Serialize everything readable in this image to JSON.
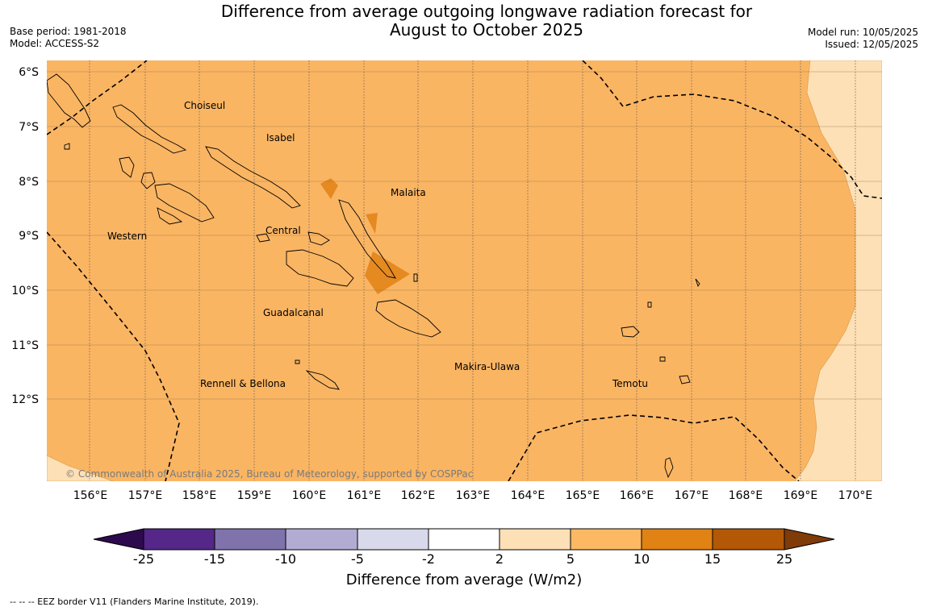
{
  "title_line1": "Difference from average outgoing longwave radiation forecast for",
  "title_line2": "August to October 2025",
  "meta_left": {
    "base_period": "Base period: 1981-2018",
    "model": "Model: ACCESS-S2"
  },
  "meta_right": {
    "model_run": "Model run: 10/05/2025",
    "issued": "Issued: 12/05/2025"
  },
  "map": {
    "lat_labels": [
      "6°S",
      "7°S",
      "8°S",
      "9°S",
      "10°S",
      "11°S",
      "12°S"
    ],
    "lon_labels": [
      "156°E",
      "157°E",
      "158°E",
      "159°E",
      "160°E",
      "161°E",
      "162°E",
      "163°E",
      "164°E",
      "165°E",
      "166°E",
      "167°E",
      "168°E",
      "169°E",
      "170°E"
    ],
    "provinces": [
      "Choiseul",
      "Isabel",
      "Malaita",
      "Western",
      "Central",
      "Guadalcanal",
      "Makira-Ulawa",
      "Rennell & Bellona",
      "Temotu"
    ],
    "copyright": "© Commonwealth of Australia 2025, Bureau of Meteorology, supported by COSPPac"
  },
  "colorbar": {
    "labels": [
      "-25",
      "-15",
      "-10",
      "-5",
      "-2",
      "2",
      "5",
      "10",
      "15",
      "25"
    ],
    "colors": [
      "#2d0a4e",
      "#542788",
      "#8073ac",
      "#b2abd2",
      "#d8daeb",
      "#ffffff",
      "#fee0b6",
      "#fdb863",
      "#e08214",
      "#b35806",
      "#7f3b08"
    ],
    "title": "Difference from average (W/m2)"
  },
  "eez_note": "--  --  -- EEZ border V11 (Flanders Marine Institute, 2019)."
}
